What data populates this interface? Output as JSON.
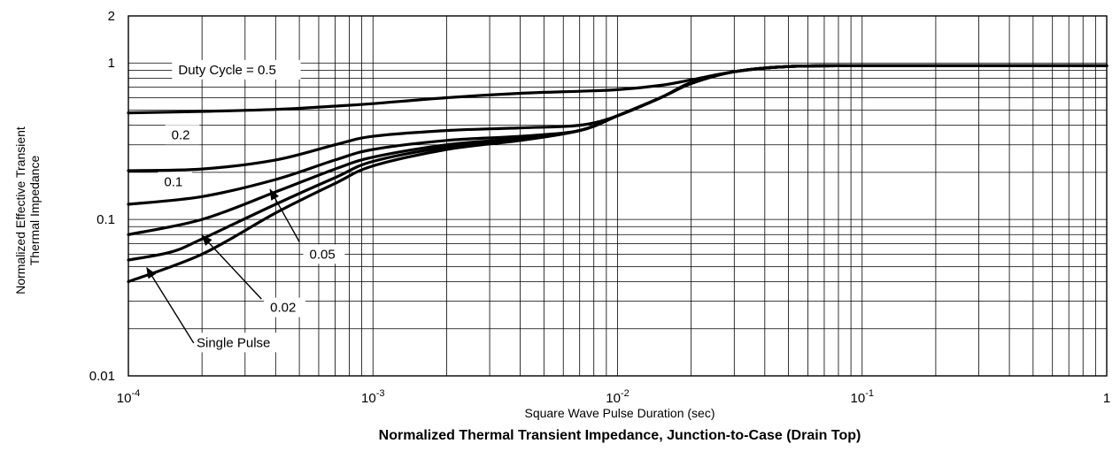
{
  "chart_data": {
    "type": "line",
    "title": "Normalized Thermal Transient Impedance, Junction-to-Case (Drain Top)",
    "xlabel": "Square Wave Pulse Duration (sec)",
    "ylabel_lines": [
      "Normalized Effective Transient",
      "Thermal Impedance"
    ],
    "x_scale": "log",
    "y_scale": "log",
    "xlim": [
      0.0001,
      1
    ],
    "ylim": [
      0.01,
      2
    ],
    "grid": true,
    "legend": "none",
    "x_tick_labels": [
      {
        "value": 0.0001,
        "base": "10",
        "exp": "-4"
      },
      {
        "value": 0.001,
        "base": "10",
        "exp": "-3"
      },
      {
        "value": 0.01,
        "base": "10",
        "exp": "-2"
      },
      {
        "value": 0.1,
        "base": "10",
        "exp": "-1"
      },
      {
        "value": 1,
        "base": "1",
        "exp": ""
      }
    ],
    "y_tick_labels": [
      {
        "value": 2,
        "label": "2"
      },
      {
        "value": 1,
        "label": "1"
      },
      {
        "value": 0.1,
        "label": "0.1"
      },
      {
        "value": 0.01,
        "label": "0.01"
      }
    ],
    "series": [
      {
        "name": "Duty Cycle = 0.5",
        "x": [
          0.0001,
          0.0002,
          0.0004,
          0.0007,
          0.001,
          0.002,
          0.004,
          0.007,
          0.01,
          0.015,
          0.02,
          0.03,
          0.05,
          0.1,
          0.3,
          1
        ],
        "y": [
          0.48,
          0.49,
          0.505,
          0.53,
          0.55,
          0.6,
          0.64,
          0.66,
          0.675,
          0.72,
          0.78,
          0.88,
          0.95,
          0.96,
          0.96,
          0.96
        ]
      },
      {
        "name": "0.2",
        "x": [
          0.0001,
          0.0002,
          0.0004,
          0.0007,
          0.001,
          0.002,
          0.004,
          0.007,
          0.01,
          0.015,
          0.02,
          0.03,
          0.05,
          0.1,
          0.3,
          1
        ],
        "y": [
          0.205,
          0.21,
          0.24,
          0.3,
          0.34,
          0.37,
          0.385,
          0.4,
          0.46,
          0.6,
          0.75,
          0.88,
          0.95,
          0.96,
          0.96,
          0.96
        ]
      },
      {
        "name": "0.1",
        "x": [
          0.0001,
          0.0002,
          0.0004,
          0.0007,
          0.001,
          0.002,
          0.004,
          0.007,
          0.01,
          0.015,
          0.02,
          0.03,
          0.05,
          0.1,
          0.3,
          1
        ],
        "y": [
          0.125,
          0.14,
          0.18,
          0.24,
          0.28,
          0.32,
          0.34,
          0.37,
          0.46,
          0.6,
          0.74,
          0.88,
          0.95,
          0.96,
          0.96,
          0.96
        ]
      },
      {
        "name": "0.05",
        "x": [
          0.0001,
          0.0002,
          0.0004,
          0.0007,
          0.001,
          0.002,
          0.004,
          0.007,
          0.01,
          0.015,
          0.02,
          0.03,
          0.05,
          0.1,
          0.3,
          1
        ],
        "y": [
          0.08,
          0.1,
          0.15,
          0.21,
          0.25,
          0.3,
          0.33,
          0.37,
          0.46,
          0.6,
          0.74,
          0.88,
          0.95,
          0.96,
          0.96,
          0.96
        ]
      },
      {
        "name": "0.02",
        "x": [
          0.0001,
          0.00015,
          0.0002,
          0.0004,
          0.0007,
          0.001,
          0.002,
          0.004,
          0.007,
          0.01,
          0.015,
          0.02,
          0.03,
          0.05,
          0.1,
          0.3,
          1
        ],
        "y": [
          0.055,
          0.062,
          0.075,
          0.125,
          0.185,
          0.235,
          0.29,
          0.325,
          0.37,
          0.46,
          0.6,
          0.74,
          0.88,
          0.95,
          0.96,
          0.96,
          0.96
        ]
      },
      {
        "name": "Single Pulse",
        "x": [
          0.0001,
          0.0002,
          0.0004,
          0.0007,
          0.001,
          0.002,
          0.004,
          0.007,
          0.01,
          0.015,
          0.02,
          0.03,
          0.05,
          0.1,
          0.3,
          1
        ],
        "y": [
          0.04,
          0.06,
          0.11,
          0.17,
          0.22,
          0.28,
          0.32,
          0.37,
          0.46,
          0.6,
          0.74,
          0.88,
          0.95,
          0.96,
          0.96,
          0.96
        ]
      }
    ],
    "annotations": [
      {
        "text": "Duty Cycle = 0.5",
        "series": "Duty Cycle = 0.5",
        "x": 0.00016,
        "y": 0.86,
        "arrow": false
      },
      {
        "text": "0.2",
        "series": "0.2",
        "x": 0.00015,
        "y": 0.33,
        "arrow": false
      },
      {
        "text": "0.1",
        "series": "0.1",
        "x": 0.00014,
        "y": 0.165,
        "arrow": false
      },
      {
        "text": "0.05",
        "series": "0.05",
        "x": 0.00055,
        "y": 0.057,
        "arrow": true,
        "arrow_to": [
          0.00038,
          0.155
        ],
        "arrow_from": [
          0.0005,
          0.072
        ]
      },
      {
        "text": "0.02",
        "series": "0.02",
        "x": 0.00038,
        "y": 0.026,
        "arrow": true,
        "arrow_to": [
          0.0002,
          0.079
        ],
        "arrow_from": [
          0.00035,
          0.031
        ]
      },
      {
        "text": "Single Pulse",
        "series": "Single Pulse",
        "x": 0.00019,
        "y": 0.0155,
        "arrow": true,
        "arrow_to": [
          0.000119,
          0.049
        ],
        "arrow_from": [
          0.000185,
          0.0162
        ]
      }
    ]
  }
}
